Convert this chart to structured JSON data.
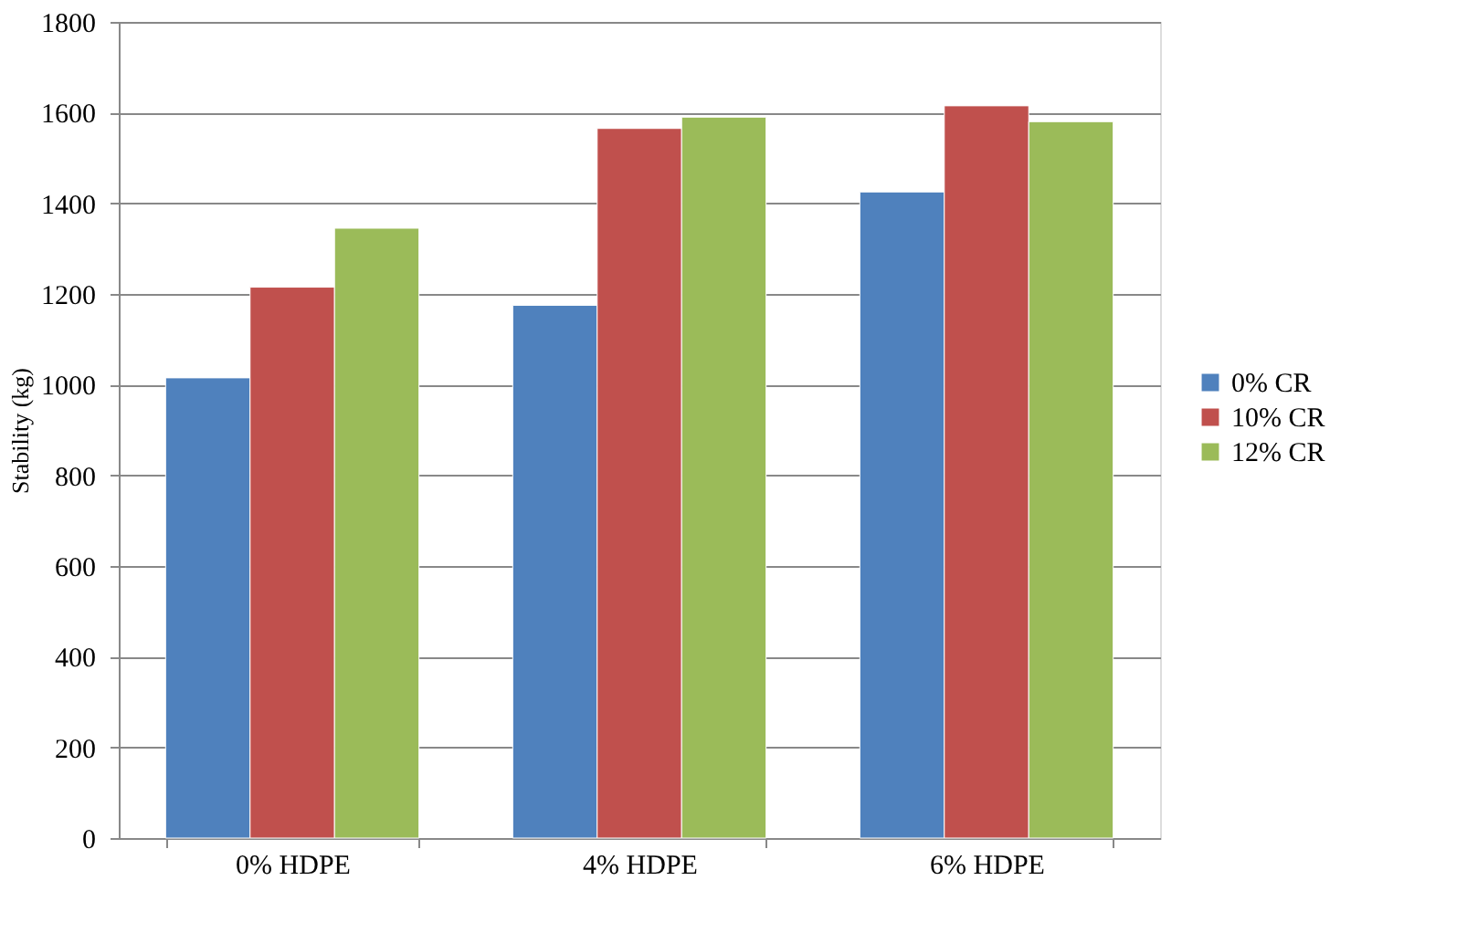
{
  "chart_data": {
    "type": "bar",
    "ylabel": "Stability (kg)",
    "categories": [
      "0% HDPE",
      "4% HDPE",
      "6% HDPE"
    ],
    "series": [
      {
        "name": "0% CR",
        "color": "#4f81bd",
        "values": [
          1015,
          1175,
          1425
        ]
      },
      {
        "name": "10% CR",
        "color": "#c0504d",
        "values": [
          1215,
          1565,
          1615
        ]
      },
      {
        "name": "12% CR",
        "color": "#9bbb59",
        "values": [
          1345,
          1590,
          1580
        ]
      }
    ],
    "ylim": [
      0,
      1800
    ],
    "yticks": [
      0,
      200,
      400,
      600,
      800,
      1000,
      1200,
      1400,
      1600,
      1800
    ],
    "grid": "y",
    "legend": "right"
  }
}
